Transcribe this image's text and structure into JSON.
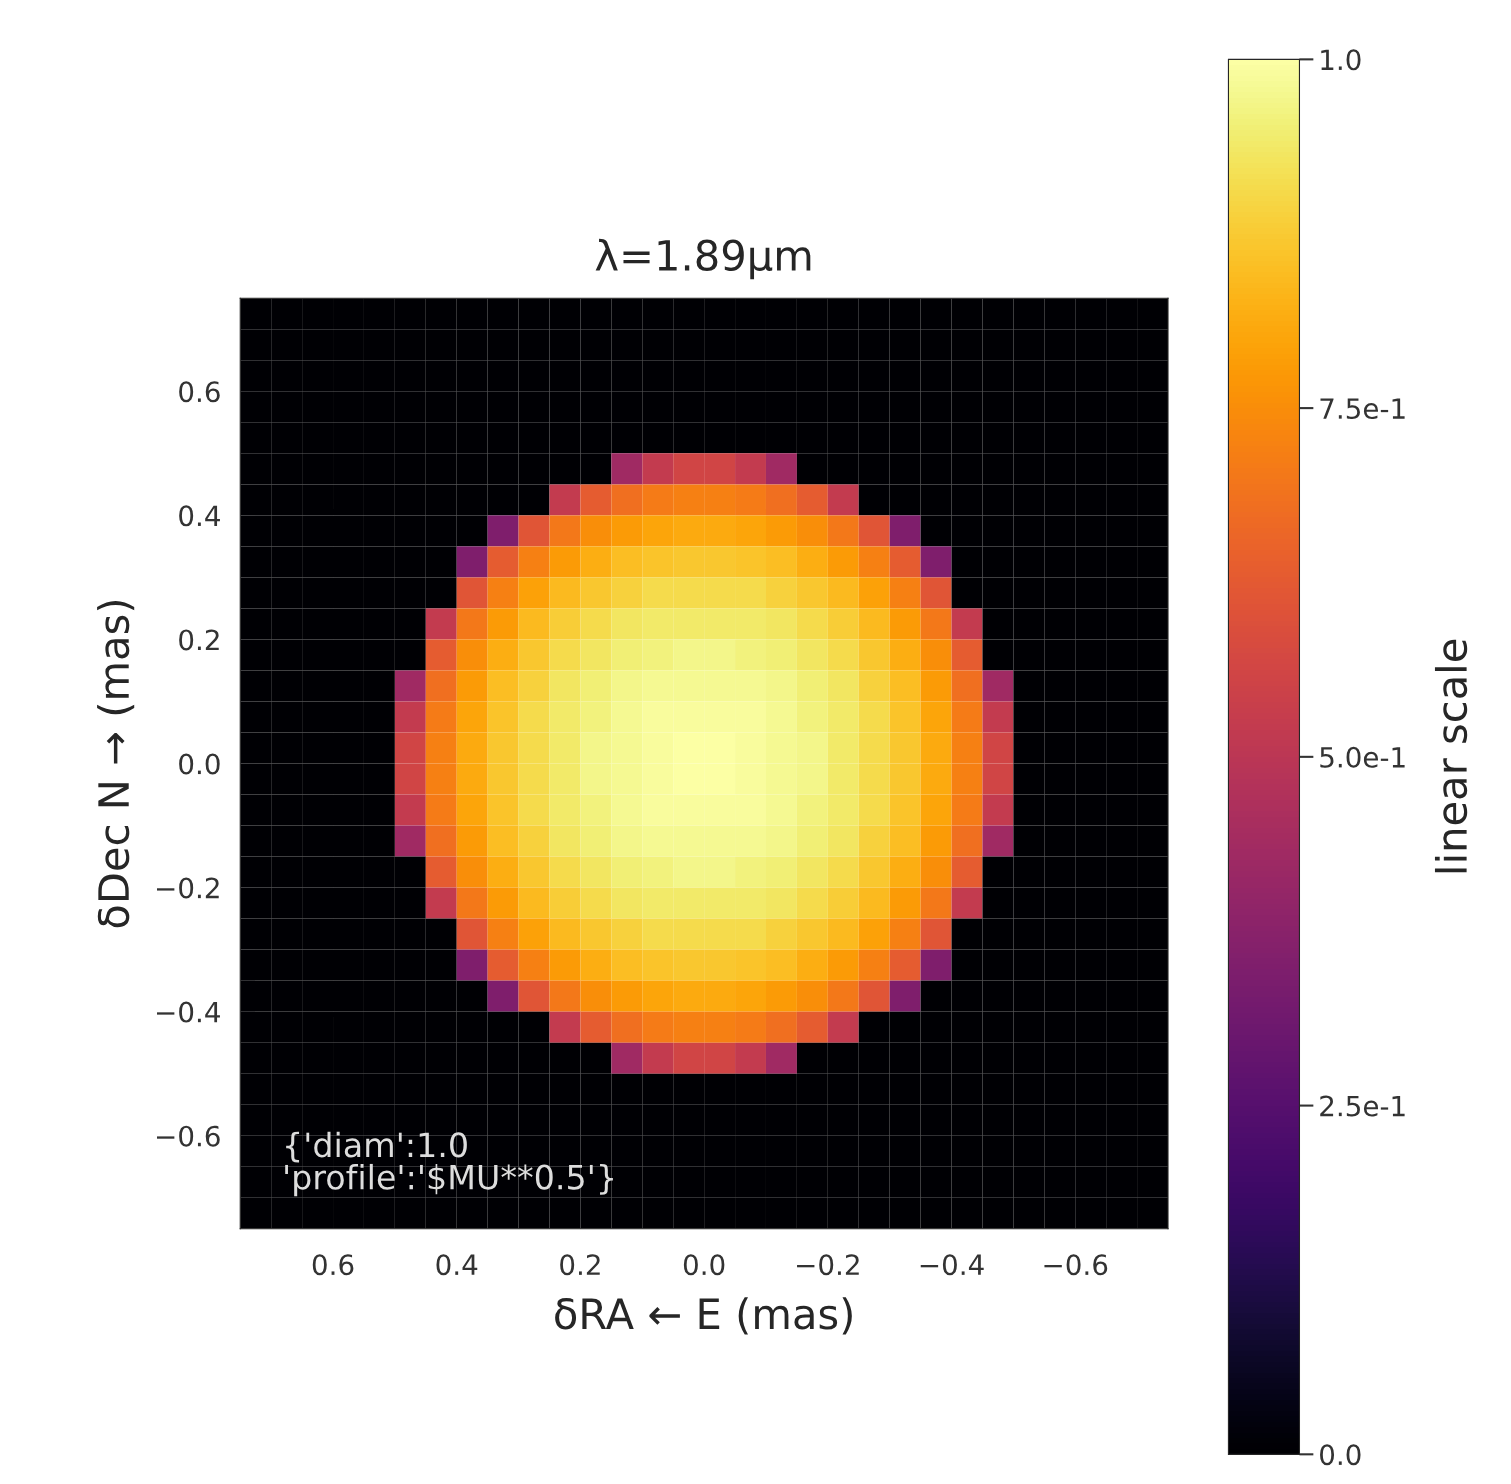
{
  "chart_data": {
    "type": "heatmap",
    "title": "λ=1.89μm",
    "xlabel": "δRA ← E (mas)",
    "ylabel": "δDec N → (mas)",
    "clabel": "linear scale",
    "annotations": [
      "{'diam':1.0\n'profile':'$MU**0.5'}"
    ],
    "x": [
      0.725,
      0.675,
      0.625,
      0.575,
      0.525,
      0.475,
      0.425,
      0.375,
      0.325,
      0.275,
      0.225,
      0.175,
      0.125,
      0.075,
      0.025,
      -0.025,
      -0.075,
      -0.125,
      -0.175,
      -0.225,
      -0.275,
      -0.325,
      -0.375,
      -0.425,
      -0.475,
      -0.525,
      -0.575,
      -0.625,
      -0.675,
      -0.725
    ],
    "y": [
      0.725,
      0.675,
      0.625,
      0.575,
      0.525,
      0.475,
      0.425,
      0.375,
      0.325,
      0.275,
      0.225,
      0.175,
      0.125,
      0.075,
      0.025,
      -0.025,
      -0.075,
      -0.125,
      -0.175,
      -0.225,
      -0.275,
      -0.325,
      -0.375,
      -0.425,
      -0.475,
      -0.525,
      -0.575,
      -0.625,
      -0.675,
      -0.725
    ],
    "xlim": [
      0.75,
      -0.75
    ],
    "ylim": [
      -0.75,
      0.75
    ],
    "xticks": [
      {
        "value": 0.6,
        "label": "0.6"
      },
      {
        "value": 0.4,
        "label": "0.4"
      },
      {
        "value": 0.2,
        "label": "0.2"
      },
      {
        "value": 0.0,
        "label": "0.0"
      },
      {
        "value": -0.2,
        "label": "−0.2"
      },
      {
        "value": -0.4,
        "label": "−0.4"
      },
      {
        "value": -0.6,
        "label": "−0.6"
      }
    ],
    "yticks": [
      {
        "value": -0.6,
        "label": "−0.6"
      },
      {
        "value": -0.4,
        "label": "−0.4"
      },
      {
        "value": -0.2,
        "label": "−0.2"
      },
      {
        "value": 0.0,
        "label": "0.0"
      },
      {
        "value": 0.2,
        "label": "0.2"
      },
      {
        "value": 0.4,
        "label": "0.4"
      },
      {
        "value": 0.6,
        "label": "0.6"
      }
    ],
    "clim": [
      0,
      1
    ],
    "cticks": [
      {
        "value": 0,
        "label": "0.0"
      },
      {
        "value": 0.25,
        "label": "2.5e-1"
      },
      {
        "value": 0.5,
        "label": "5.0e-1"
      },
      {
        "value": 0.75,
        "label": "7.5e-1"
      },
      {
        "value": 1,
        "label": "1.0"
      }
    ],
    "cells": [
      [
        0,
        0,
        0,
        0,
        0,
        0,
        0,
        0,
        0,
        0,
        0,
        0,
        0,
        0,
        0,
        0,
        0,
        0,
        0,
        0,
        0,
        0,
        0,
        0,
        0,
        0,
        0,
        0,
        0,
        0
      ],
      [
        0,
        0,
        0,
        0,
        0,
        0,
        0,
        0,
        0,
        0,
        0,
        0,
        0,
        0,
        0,
        0,
        0,
        0,
        0,
        0,
        0,
        0,
        0,
        0,
        0,
        0,
        0,
        0,
        0,
        0
      ],
      [
        0,
        0,
        0,
        0,
        0,
        0,
        0,
        0,
        0,
        0,
        0,
        0,
        0,
        0,
        0,
        0,
        0,
        0,
        0,
        0,
        0,
        0,
        0,
        0,
        0,
        0,
        0,
        0,
        0,
        0
      ],
      [
        0,
        0,
        0,
        0,
        0,
        0,
        0,
        0,
        0,
        0,
        0,
        0,
        0,
        0,
        0,
        0,
        0,
        0,
        0,
        0,
        0,
        0,
        0,
        0,
        0,
        0,
        0,
        0,
        0,
        0
      ],
      [
        0,
        0,
        0,
        0,
        0,
        0,
        0,
        0,
        0,
        0,
        0,
        0,
        0,
        0,
        0,
        0,
        0,
        0,
        0,
        0,
        0,
        0,
        0,
        0,
        0,
        0,
        0,
        0,
        0,
        0
      ],
      [
        0,
        0,
        0,
        0,
        0,
        0,
        0,
        0,
        0,
        0,
        0,
        0,
        0.43,
        0.52,
        0.56,
        0.56,
        0.52,
        0.43,
        0,
        0,
        0,
        0,
        0,
        0,
        0,
        0,
        0,
        0,
        0,
        0
      ],
      [
        0,
        0,
        0,
        0,
        0,
        0,
        0,
        0,
        0,
        0,
        0.52,
        0.63,
        0.68,
        0.71,
        0.72,
        0.72,
        0.71,
        0.68,
        0.63,
        0.52,
        0,
        0,
        0,
        0,
        0,
        0,
        0,
        0,
        0,
        0
      ],
      [
        0,
        0,
        0,
        0,
        0,
        0,
        0,
        0,
        0.35,
        0.61,
        0.7,
        0.75,
        0.78,
        0.8,
        0.81,
        0.81,
        0.8,
        0.78,
        0.75,
        0.7,
        0.61,
        0.35,
        0,
        0,
        0,
        0,
        0,
        0,
        0,
        0
      ],
      [
        0,
        0,
        0,
        0,
        0,
        0,
        0,
        0.35,
        0.63,
        0.72,
        0.78,
        0.82,
        0.85,
        0.86,
        0.87,
        0.87,
        0.86,
        0.85,
        0.82,
        0.78,
        0.72,
        0.63,
        0.35,
        0,
        0,
        0,
        0,
        0,
        0,
        0
      ],
      [
        0,
        0,
        0,
        0,
        0,
        0,
        0,
        0.61,
        0.72,
        0.79,
        0.84,
        0.87,
        0.89,
        0.91,
        0.91,
        0.91,
        0.91,
        0.89,
        0.87,
        0.84,
        0.79,
        0.72,
        0.61,
        0,
        0,
        0,
        0,
        0,
        0,
        0
      ],
      [
        0,
        0,
        0,
        0,
        0,
        0,
        0.52,
        0.7,
        0.78,
        0.84,
        0.88,
        0.91,
        0.93,
        0.94,
        0.94,
        0.94,
        0.94,
        0.93,
        0.91,
        0.88,
        0.84,
        0.78,
        0.7,
        0.52,
        0,
        0,
        0,
        0,
        0,
        0
      ],
      [
        0,
        0,
        0,
        0,
        0,
        0,
        0.63,
        0.75,
        0.82,
        0.87,
        0.91,
        0.93,
        0.95,
        0.96,
        0.97,
        0.97,
        0.96,
        0.95,
        0.93,
        0.91,
        0.87,
        0.82,
        0.75,
        0.63,
        0,
        0,
        0,
        0,
        0,
        0
      ],
      [
        0,
        0,
        0,
        0,
        0,
        0.43,
        0.68,
        0.78,
        0.85,
        0.89,
        0.93,
        0.95,
        0.97,
        0.98,
        0.98,
        0.98,
        0.98,
        0.97,
        0.95,
        0.93,
        0.89,
        0.85,
        0.78,
        0.68,
        0.43,
        0,
        0,
        0,
        0,
        0
      ],
      [
        0,
        0,
        0,
        0,
        0,
        0.52,
        0.71,
        0.8,
        0.86,
        0.91,
        0.94,
        0.96,
        0.98,
        0.99,
        0.99,
        0.99,
        0.99,
        0.98,
        0.96,
        0.94,
        0.91,
        0.86,
        0.8,
        0.71,
        0.52,
        0,
        0,
        0,
        0,
        0
      ],
      [
        0,
        0,
        0,
        0,
        0,
        0.56,
        0.72,
        0.81,
        0.87,
        0.91,
        0.94,
        0.97,
        0.98,
        0.99,
        1.0,
        1.0,
        0.99,
        0.98,
        0.97,
        0.94,
        0.91,
        0.87,
        0.81,
        0.72,
        0.56,
        0,
        0,
        0,
        0,
        0
      ],
      [
        0,
        0,
        0,
        0,
        0,
        0.56,
        0.72,
        0.81,
        0.87,
        0.91,
        0.94,
        0.97,
        0.98,
        0.99,
        1.0,
        1.0,
        0.99,
        0.98,
        0.97,
        0.94,
        0.91,
        0.87,
        0.81,
        0.72,
        0.56,
        0,
        0,
        0,
        0,
        0
      ],
      [
        0,
        0,
        0,
        0,
        0,
        0.52,
        0.71,
        0.8,
        0.86,
        0.91,
        0.94,
        0.96,
        0.98,
        0.99,
        0.99,
        0.99,
        0.99,
        0.98,
        0.96,
        0.94,
        0.91,
        0.86,
        0.8,
        0.71,
        0.52,
        0,
        0,
        0,
        0,
        0
      ],
      [
        0,
        0,
        0,
        0,
        0,
        0.43,
        0.68,
        0.78,
        0.85,
        0.89,
        0.93,
        0.95,
        0.97,
        0.98,
        0.98,
        0.98,
        0.98,
        0.97,
        0.95,
        0.93,
        0.89,
        0.85,
        0.78,
        0.68,
        0.43,
        0,
        0,
        0,
        0,
        0
      ],
      [
        0,
        0,
        0,
        0,
        0,
        0,
        0.63,
        0.75,
        0.82,
        0.87,
        0.91,
        0.93,
        0.95,
        0.96,
        0.97,
        0.97,
        0.96,
        0.95,
        0.93,
        0.91,
        0.87,
        0.82,
        0.75,
        0.63,
        0,
        0,
        0,
        0,
        0,
        0
      ],
      [
        0,
        0,
        0,
        0,
        0,
        0,
        0.52,
        0.7,
        0.78,
        0.84,
        0.88,
        0.91,
        0.93,
        0.94,
        0.94,
        0.94,
        0.94,
        0.93,
        0.91,
        0.88,
        0.84,
        0.78,
        0.7,
        0.52,
        0,
        0,
        0,
        0,
        0,
        0
      ],
      [
        0,
        0,
        0,
        0,
        0,
        0,
        0,
        0.61,
        0.72,
        0.79,
        0.84,
        0.87,
        0.89,
        0.91,
        0.91,
        0.91,
        0.91,
        0.89,
        0.87,
        0.84,
        0.79,
        0.72,
        0.61,
        0,
        0,
        0,
        0,
        0,
        0,
        0
      ],
      [
        0,
        0,
        0,
        0,
        0,
        0,
        0,
        0.35,
        0.63,
        0.72,
        0.78,
        0.82,
        0.85,
        0.86,
        0.87,
        0.87,
        0.86,
        0.85,
        0.82,
        0.78,
        0.72,
        0.63,
        0.35,
        0,
        0,
        0,
        0,
        0,
        0,
        0
      ],
      [
        0,
        0,
        0,
        0,
        0,
        0,
        0,
        0,
        0.35,
        0.61,
        0.7,
        0.75,
        0.78,
        0.8,
        0.81,
        0.81,
        0.8,
        0.78,
        0.75,
        0.7,
        0.61,
        0.35,
        0,
        0,
        0,
        0,
        0,
        0,
        0,
        0
      ],
      [
        0,
        0,
        0,
        0,
        0,
        0,
        0,
        0,
        0,
        0,
        0.52,
        0.63,
        0.68,
        0.71,
        0.72,
        0.72,
        0.71,
        0.68,
        0.63,
        0.52,
        0,
        0,
        0,
        0,
        0,
        0,
        0,
        0,
        0,
        0
      ],
      [
        0,
        0,
        0,
        0,
        0,
        0,
        0,
        0,
        0,
        0,
        0,
        0,
        0.43,
        0.52,
        0.56,
        0.56,
        0.52,
        0.43,
        0,
        0,
        0,
        0,
        0,
        0,
        0,
        0,
        0,
        0,
        0,
        0
      ],
      [
        0,
        0,
        0,
        0,
        0,
        0,
        0,
        0,
        0,
        0,
        0,
        0,
        0,
        0,
        0,
        0,
        0,
        0,
        0,
        0,
        0,
        0,
        0,
        0,
        0,
        0,
        0,
        0,
        0,
        0
      ],
      [
        0,
        0,
        0,
        0,
        0,
        0,
        0,
        0,
        0,
        0,
        0,
        0,
        0,
        0,
        0,
        0,
        0,
        0,
        0,
        0,
        0,
        0,
        0,
        0,
        0,
        0,
        0,
        0,
        0,
        0
      ],
      [
        0,
        0,
        0,
        0,
        0,
        0,
        0,
        0,
        0,
        0,
        0,
        0,
        0,
        0,
        0,
        0,
        0,
        0,
        0,
        0,
        0,
        0,
        0,
        0,
        0,
        0,
        0,
        0,
        0,
        0
      ],
      [
        0,
        0,
        0,
        0,
        0,
        0,
        0,
        0,
        0,
        0,
        0,
        0,
        0,
        0,
        0,
        0,
        0,
        0,
        0,
        0,
        0,
        0,
        0,
        0,
        0,
        0,
        0,
        0,
        0,
        0
      ],
      [
        0,
        0,
        0,
        0,
        0,
        0,
        0,
        0,
        0,
        0,
        0,
        0,
        0,
        0,
        0,
        0,
        0,
        0,
        0,
        0,
        0,
        0,
        0,
        0,
        0,
        0,
        0,
        0,
        0,
        0
      ]
    ]
  }
}
